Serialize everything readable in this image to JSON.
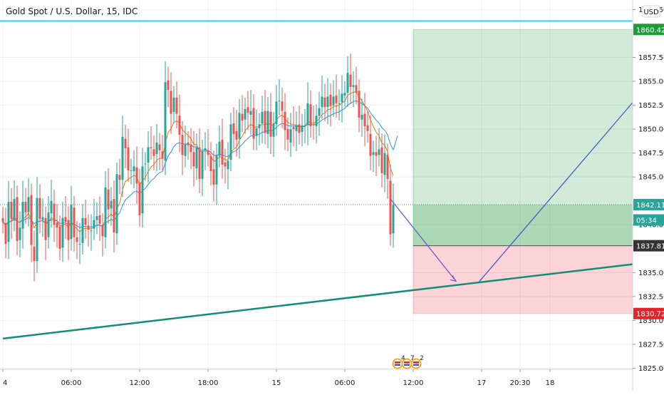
{
  "header": {
    "symbol_title": "Gold Spot / U.S. Dollar, 15, IDC"
  },
  "price_scale": {
    "currency": "USD",
    "ticks": [
      "1862.50",
      "1857.50",
      "1855.00",
      "1852.50",
      "1850.00",
      "1847.50",
      "1845.00",
      "1840.00",
      "1835.00",
      "1832.50",
      "1830.00",
      "1827.50",
      "1825.00"
    ],
    "tick_values": [
      1862.5,
      1857.5,
      1855.0,
      1852.5,
      1850.0,
      1847.5,
      1845.0,
      1840.0,
      1835.0,
      1832.5,
      1830.0,
      1827.5,
      1825.0
    ],
    "badges": [
      {
        "label": "1860.42",
        "value": 1860.42,
        "color": "#1e9c3c"
      },
      {
        "label": "1842.11",
        "value": 1842.11,
        "color": "#26a69a"
      },
      {
        "label": "05:34",
        "value": 1840.5,
        "color": "#26a69a"
      },
      {
        "label": "1837.81",
        "value": 1837.81,
        "color": "#333333"
      },
      {
        "label": "1830.72",
        "value": 1830.72,
        "color": "#e0242a"
      }
    ]
  },
  "time_axis": {
    "labels": [
      "4",
      "06:00",
      "12:00",
      "18:00",
      "15",
      "06:00",
      "12:00",
      "17",
      "20:30",
      "18"
    ],
    "bar_positions": [
      0,
      24,
      48,
      72,
      96,
      120,
      144,
      168,
      181.5,
      192
    ]
  },
  "events": {
    "counts": [
      "4",
      "7",
      "2"
    ]
  },
  "chart_data": {
    "type": "candlestick",
    "title": "Gold Spot / U.S. Dollar, 15, IDC",
    "interval": "15",
    "ylim": [
      1822.5,
      1863.5
    ],
    "x_unit": "15-minute bars",
    "y_unit": "USD",
    "last_price": 1842.11,
    "horizontal_level": 1861.3,
    "position": {
      "entry": 1837.81,
      "target": 1860.42,
      "stop": 1830.72,
      "start_bar": 144,
      "end_bar": 222
    },
    "trendline": {
      "x": [
        0,
        236
      ],
      "y": [
        1828.1,
        1836.4
      ]
    },
    "projection_down": {
      "x": [
        136,
        159
      ],
      "y": [
        1842.7,
        1834.1
      ]
    },
    "projection_up": {
      "x": [
        167,
        236
      ],
      "y": [
        1834.0,
        1858.0
      ]
    },
    "moving_averages": [
      {
        "color": "#f57c00",
        "period": "fast"
      },
      {
        "color": "#2196f3",
        "period": "slow"
      }
    ],
    "closes": [
      1840.3,
      1838.0,
      1842.4,
      1840.6,
      1842.7,
      1838.3,
      1839.7,
      1842.4,
      1841.3,
      1842.9,
      1837.9,
      1836.2,
      1842.8,
      1840.6,
      1840.8,
      1838.4,
      1841.3,
      1842.5,
      1840.0,
      1839.7,
      1837.5,
      1840.7,
      1840.3,
      1838.4,
      1842.1,
      1838.7,
      1838.2,
      1838.0,
      1840.7,
      1840.0,
      1839.5,
      1839.4,
      1840.5,
      1840.9,
      1840.1,
      1838.8,
      1843.9,
      1841.6,
      1842.5,
      1839.2,
      1845.3,
      1844.7,
      1849.2,
      1848.0,
      1845.7,
      1845.7,
      1846.1,
      1844.3,
      1841.0,
      1846.1,
      1846.4,
      1848.1,
      1848.0,
      1847.2,
      1848.6,
      1847.8,
      1846.9,
      1854.9,
      1854.1,
      1851.6,
      1853.3,
      1851.6,
      1849.4,
      1847.3,
      1848.4,
      1848.3,
      1847.6,
      1846.1,
      1848.1,
      1844.8,
      1847.7,
      1848.0,
      1847.3,
      1845.6,
      1844.2,
      1847.3,
      1848.7,
      1846.3,
      1846.1,
      1846.7,
      1850.5,
      1849.5,
      1848.9,
      1851.7,
      1850.9,
      1852.1,
      1851.7,
      1851.9,
      1849.0,
      1850.1,
      1850.5,
      1851.8,
      1849.6,
      1851.9,
      1849.2,
      1850.6,
      1852.9,
      1853.0,
      1851.9,
      1849.9,
      1848.9,
      1850.0,
      1850.0,
      1850.4,
      1849.6,
      1850.4,
      1850.4,
      1852.7,
      1850.3,
      1850.4,
      1851.4,
      1852.2,
      1853.4,
      1852.3,
      1853.4,
      1852.4,
      1853.4,
      1852.7,
      1852.7,
      1853.7,
      1853.8,
      1855.9,
      1854.4,
      1854.6,
      1853.8,
      1851.2,
      1851.5,
      1850.3,
      1849.8,
      1847.2,
      1847.6,
      1847.2,
      1847.9,
      1845.4,
      1847.5,
      1844.8,
      1839.0,
      1842.1
    ],
    "opens": [
      1840.7,
      1840.1,
      1838.2,
      1842.4,
      1840.5,
      1842.9,
      1838.4,
      1839.6,
      1842.4,
      1841.3,
      1843.1,
      1837.7,
      1836.2,
      1842.8,
      1840.5,
      1840.7,
      1838.7,
      1841.2,
      1842.2,
      1840.2,
      1839.8,
      1837.6,
      1840.8,
      1840.5,
      1838.5,
      1841.8,
      1838.7,
      1838.0,
      1838.1,
      1840.7,
      1839.9,
      1839.4,
      1839.6,
      1840.5,
      1841.0,
      1840.0,
      1838.7,
      1843.7,
      1841.7,
      1842.7,
      1839.1,
      1845.2,
      1844.7,
      1849.0,
      1848.1,
      1845.7,
      1845.6,
      1846.0,
      1844.4,
      1841.2,
      1846.4,
      1846.5,
      1848.1,
      1847.9,
      1847.4,
      1848.4,
      1847.7,
      1846.7,
      1855.1,
      1854.0,
      1851.8,
      1853.3,
      1851.4,
      1849.4,
      1847.2,
      1848.6,
      1848.4,
      1847.6,
      1845.9,
      1848.1,
      1844.8,
      1847.8,
      1847.8,
      1847.2,
      1845.8,
      1844.2,
      1847.2,
      1848.9,
      1846.5,
      1845.8,
      1846.8,
      1850.6,
      1849.8,
      1849.0,
      1851.6,
      1851.0,
      1852.3,
      1851.5,
      1852.2,
      1849.3,
      1850.1,
      1850.6,
      1851.9,
      1849.5,
      1851.8,
      1849.2,
      1850.5,
      1853.0,
      1852.9,
      1851.8,
      1850.0,
      1848.6,
      1850.2,
      1849.8,
      1850.5,
      1849.7,
      1850.3,
      1850.4,
      1852.6,
      1850.5,
      1850.3,
      1851.4,
      1852.3,
      1853.3,
      1852.3,
      1853.6,
      1852.5,
      1853.5,
      1852.7,
      1852.8,
      1853.5,
      1853.8,
      1855.7,
      1854.4,
      1854.6,
      1854.0,
      1851.0,
      1851.6,
      1850.4,
      1849.5,
      1847.3,
      1847.6,
      1847.3,
      1848.1,
      1845.2,
      1847.3,
      1844.6,
      1839.1
    ]
  }
}
